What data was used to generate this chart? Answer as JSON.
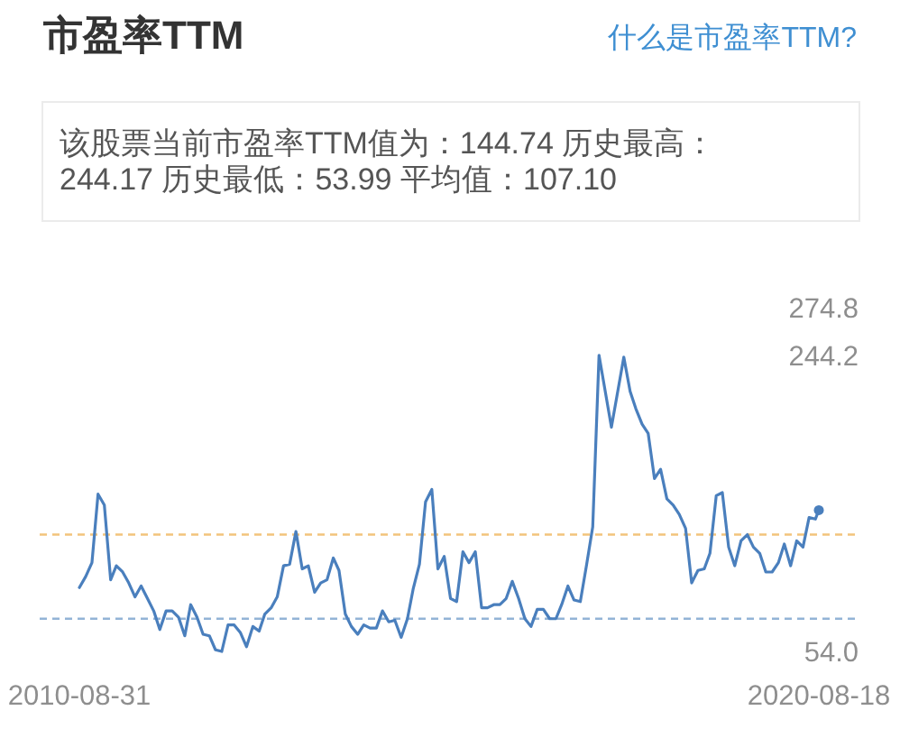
{
  "chart_data": {
    "type": "line",
    "title": "市盈率TTM",
    "subtitle": "该股票当前市盈率TTM值为：144.74 历史最高：244.17 历史最低：53.99 平均值：107.10",
    "annotations": [
      "什么是市盈率TTM?"
    ],
    "x": [
      "2010-08-31",
      "2010-10",
      "2010-11",
      "2010-12",
      "2011-01",
      "2011-02",
      "2011-03",
      "2011-04",
      "2011-05",
      "2011-06",
      "2011-07",
      "2011-08",
      "2011-09",
      "2011-10",
      "2011-11",
      "2011-12",
      "2012-01",
      "2012-02",
      "2012-03",
      "2012-04",
      "2012-05",
      "2012-06",
      "2012-07",
      "2012-08",
      "2012-09",
      "2012-10",
      "2012-11",
      "2012-12",
      "2013-01",
      "2013-02",
      "2013-03",
      "2013-04",
      "2013-05",
      "2013-06",
      "2013-07",
      "2013-08",
      "2013-09",
      "2013-10",
      "2013-11",
      "2013-12",
      "2014-01",
      "2014-02",
      "2014-03",
      "2014-04",
      "2014-05",
      "2014-06",
      "2014-07",
      "2014-08",
      "2014-09",
      "2014-10",
      "2014-11",
      "2014-12",
      "2015-01",
      "2015-02",
      "2015-03",
      "2015-04",
      "2015-05",
      "2015-06",
      "2015-07",
      "2015-08",
      "2015-09",
      "2015-10",
      "2015-11",
      "2015-12",
      "2016-01",
      "2016-02",
      "2016-03",
      "2016-04",
      "2016-05",
      "2016-06",
      "2016-07",
      "2016-08",
      "2016-09",
      "2016-10",
      "2016-11",
      "2016-12",
      "2017-01",
      "2017-02",
      "2017-03",
      "2017-04",
      "2017-05",
      "2017-06",
      "2017-07",
      "2017-08",
      "2017-09",
      "2017-11",
      "2018-01",
      "2018-02",
      "2018-03",
      "2018-04",
      "2018-05",
      "2018-06",
      "2018-07",
      "2018-08",
      "2018-09",
      "2018-10",
      "2018-11",
      "2018-12",
      "2019-01",
      "2019-02",
      "2019-03",
      "2019-04",
      "2019-05",
      "2019-06",
      "2019-07",
      "2019-08",
      "2019-09",
      "2019-10",
      "2019-11",
      "2019-12",
      "2020-01",
      "2020-02",
      "2020-03",
      "2020-04",
      "2020-05",
      "2020-06",
      "2020-07",
      "2020-08",
      "2020-08-18"
    ],
    "series": [
      {
        "color": "#4a7fbd",
        "values": [
          95,
          102,
          111,
          155,
          148,
          100,
          109,
          105,
          98,
          89,
          96,
          88,
          80,
          68,
          80,
          80,
          76,
          64,
          84,
          76,
          65,
          64,
          55,
          53.99,
          71,
          71,
          66,
          57,
          70,
          67,
          78,
          82,
          89,
          109,
          110,
          131,
          107,
          109,
          92,
          98,
          100,
          114,
          106,
          78,
          70,
          65,
          71,
          69,
          69,
          80,
          73,
          74,
          63,
          75,
          94,
          110,
          150,
          158,
          107,
          115,
          88,
          86,
          118,
          111,
          118,
          82,
          82,
          84,
          84,
          88,
          99,
          88,
          75,
          70,
          81,
          81,
          75,
          75,
          84,
          96,
          87,
          86,
          109,
          134,
          244.17,
          198,
          243,
          221,
          210,
          200,
          194,
          165,
          171,
          152,
          148,
          142,
          133,
          98,
          106,
          107,
          117,
          154,
          156,
          121,
          109,
          125,
          129,
          121,
          117,
          105,
          105,
          111,
          123,
          109,
          125,
          121,
          140,
          139,
          144.74
        ]
      },
      {
        "type": "scatter",
        "marker": "circle",
        "color": "#4a7fbd",
        "x": [
          "2020-08-18"
        ],
        "values": [
          144.74
        ]
      }
    ],
    "xlim": [
      "2010-08-31",
      "2020-08-18"
    ],
    "xticks": [
      "2010-08-31",
      "2020-08-18"
    ],
    "ylim": [
      53.99,
      274.8
    ],
    "yticks": [
      {
        "value": 53.99,
        "label": "54.0"
      },
      {
        "value": 244.17,
        "label": "244.2"
      },
      274.8
    ],
    "ref_lines": [
      {
        "axis": "y",
        "value": 129,
        "color": "#f2c47c",
        "line_style": "dashed"
      },
      {
        "axis": "y",
        "value": 75,
        "color": "#93b3d6",
        "line_style": "dashed"
      }
    ]
  }
}
